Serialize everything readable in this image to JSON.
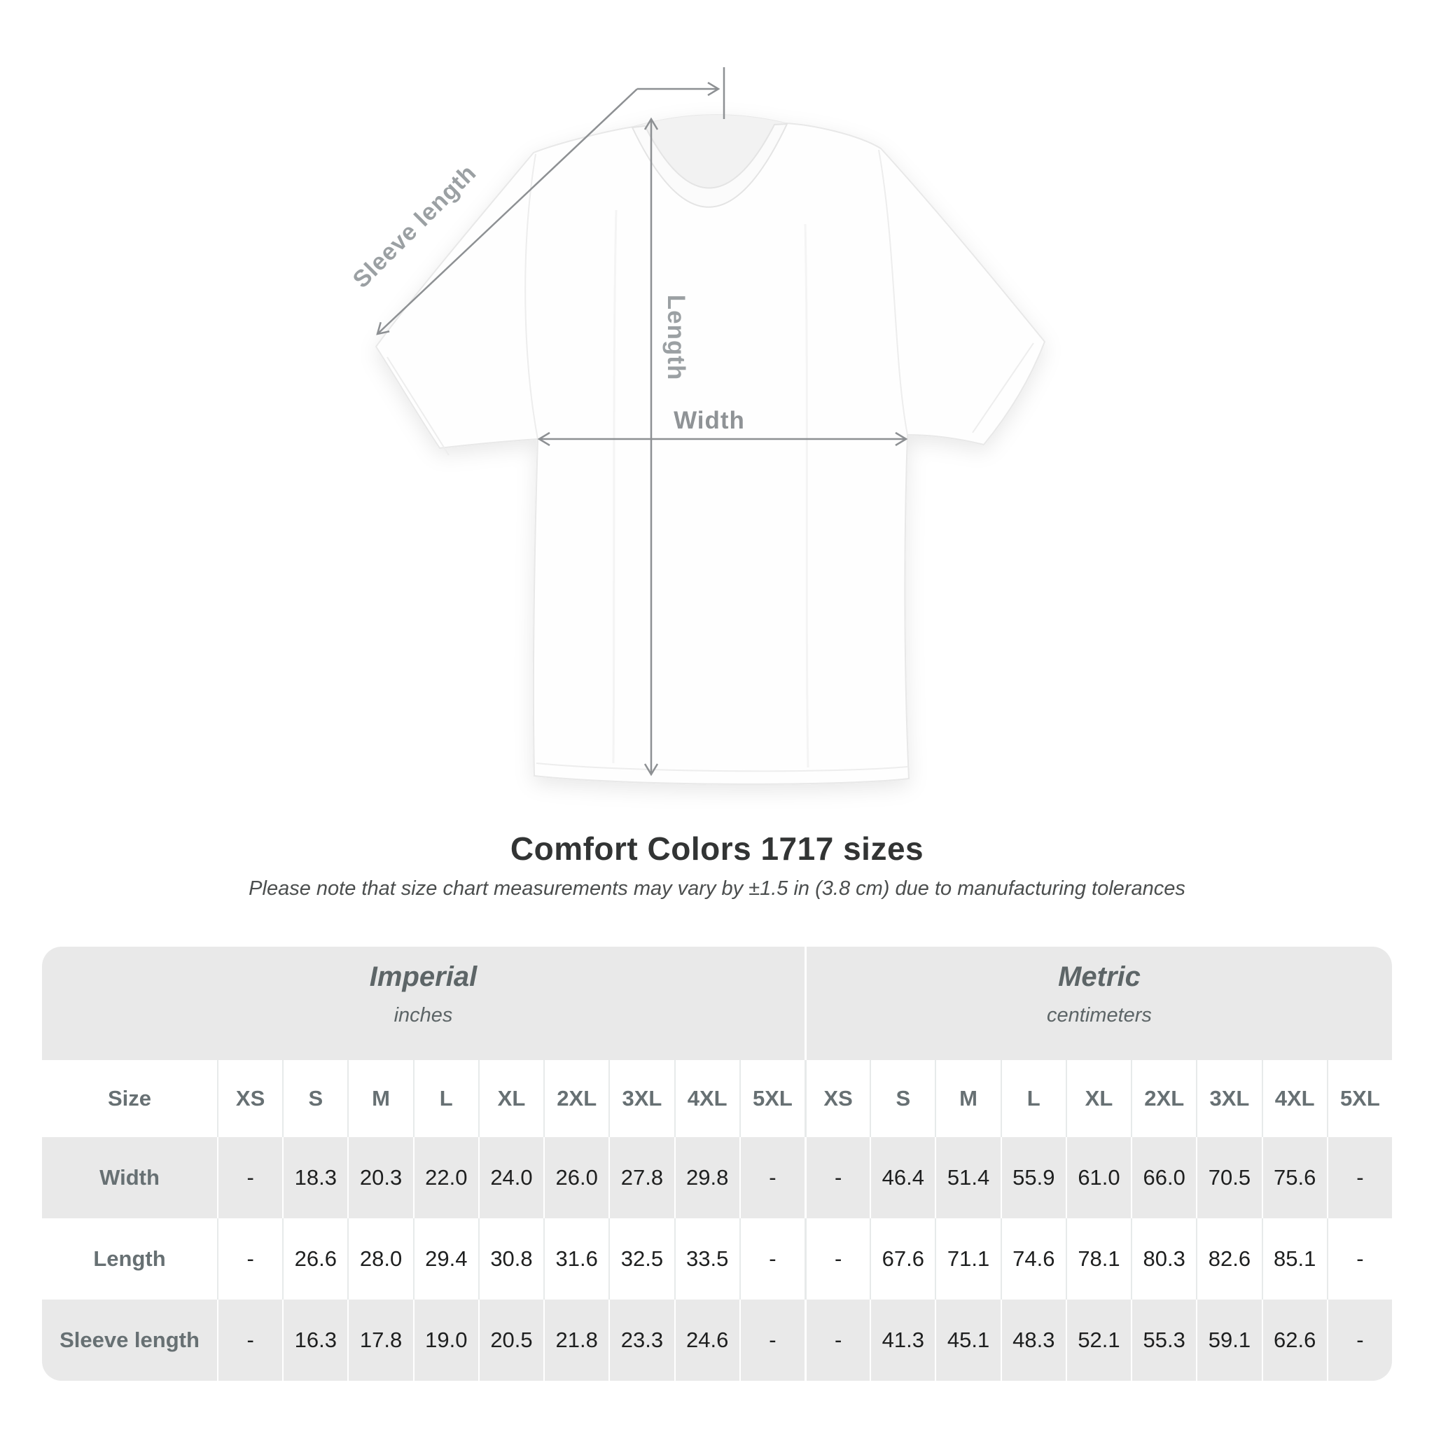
{
  "diagram": {
    "labels": {
      "sleeve_length": "Sleeve length",
      "length": "Length",
      "width": "Width"
    },
    "colors": {
      "measure_line": "#8d9093",
      "measure_label": "#9ba0a3",
      "shirt_outline": "#e8e8e8",
      "shirt_fill": "#fefefe"
    }
  },
  "chart_data": {
    "type": "table",
    "title": "Comfort Colors 1717 sizes",
    "subtitle": "Please note that size chart measurements may vary by ±1.5 in (3.8 cm) due to manufacturing tolerances",
    "unit_groups": [
      {
        "label": "Imperial",
        "units": "inches"
      },
      {
        "label": "Metric",
        "units": "centimeters"
      }
    ],
    "size_column_header": "Size",
    "sizes": [
      "XS",
      "S",
      "M",
      "L",
      "XL",
      "2XL",
      "3XL",
      "4XL",
      "5XL"
    ],
    "rows": [
      {
        "label": "Width",
        "imperial": [
          "-",
          "18.3",
          "20.3",
          "22.0",
          "24.0",
          "26.0",
          "27.8",
          "29.8",
          "-"
        ],
        "metric": [
          "-",
          "46.4",
          "51.4",
          "55.9",
          "61.0",
          "66.0",
          "70.5",
          "75.6",
          "-"
        ]
      },
      {
        "label": "Length",
        "imperial": [
          "-",
          "26.6",
          "28.0",
          "29.4",
          "30.8",
          "31.6",
          "32.5",
          "33.5",
          "-"
        ],
        "metric": [
          "-",
          "67.6",
          "71.1",
          "74.6",
          "78.1",
          "80.3",
          "82.6",
          "85.1",
          "-"
        ]
      },
      {
        "label": "Sleeve length",
        "imperial": [
          "-",
          "16.3",
          "17.8",
          "19.0",
          "20.5",
          "21.8",
          "23.3",
          "24.6",
          "-"
        ],
        "metric": [
          "-",
          "41.3",
          "45.1",
          "48.3",
          "52.1",
          "55.3",
          "59.1",
          "62.6",
          "-"
        ]
      }
    ],
    "layout": {
      "table_band_color": "#e9e9e9",
      "row_colors": [
        "#e9e9e9",
        "#ffffff",
        "#e9e9e9"
      ],
      "title_color": "#323434"
    }
  }
}
